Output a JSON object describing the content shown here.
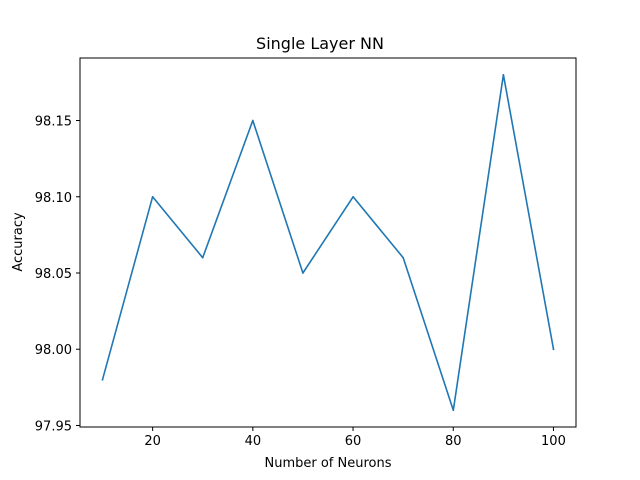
{
  "chart_data": {
    "type": "line",
    "title": "Single Layer NN",
    "xlabel": "Number of Neurons",
    "ylabel": "Accuracy",
    "x": [
      10,
      20,
      30,
      40,
      50,
      60,
      70,
      80,
      90,
      100
    ],
    "series": [
      {
        "values": [
          97.98,
          98.1,
          98.06,
          98.15,
          98.05,
          98.1,
          98.06,
          97.96,
          98.18,
          98.0
        ]
      }
    ],
    "xlim": [
      5.5,
      104.5
    ],
    "ylim": [
      97.949,
      98.191
    ],
    "xticks": [
      20,
      40,
      60,
      80,
      100
    ],
    "xtick_labels": [
      "20",
      "40",
      "60",
      "80",
      "100"
    ],
    "yticks": [
      97.95,
      98.0,
      98.05,
      98.1,
      98.15
    ],
    "ytick_labels": [
      "97.95",
      "98.00",
      "98.05",
      "98.10",
      "98.15"
    ],
    "grid": false,
    "colors": {
      "line": "#1f77b4",
      "axes": "#000000",
      "background": "#ffffff"
    }
  }
}
